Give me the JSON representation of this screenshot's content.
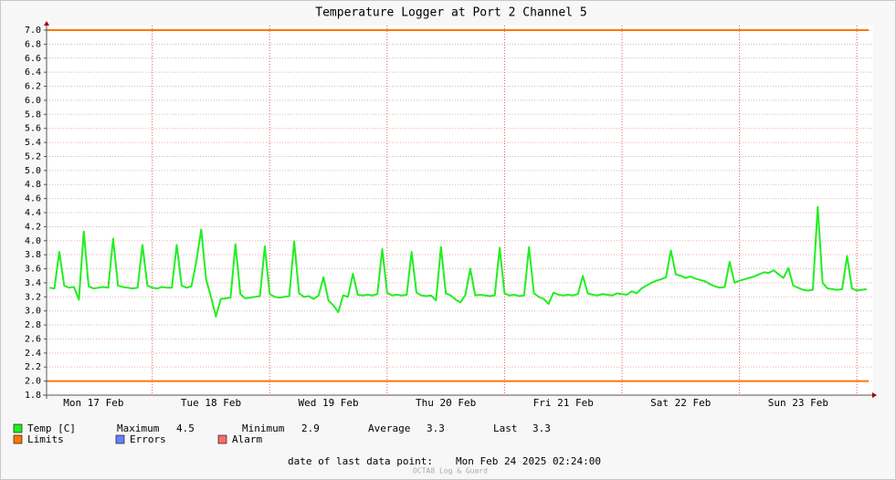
{
  "chart_data": {
    "type": "line",
    "title": "Temperature Logger at Port 2 Channel 5",
    "xlim": [
      2.4,
      170.4
    ],
    "xticks": [
      {
        "value": 12,
        "label": "Mon 17 Feb"
      },
      {
        "value": 36,
        "label": "Tue 18 Feb"
      },
      {
        "value": 60,
        "label": "Wed 19 Feb"
      },
      {
        "value": 84,
        "label": "Thu 20 Feb"
      },
      {
        "value": 108,
        "label": "Fri 21 Feb"
      },
      {
        "value": 132,
        "label": "Sat 22 Feb"
      },
      {
        "value": 156,
        "label": "Sun 23 Feb"
      }
    ],
    "xgrid": [
      24,
      48,
      72,
      96,
      120,
      144,
      168
    ],
    "ylim": [
      1.8,
      7.0
    ],
    "yticks": [
      1.8,
      {
        "value": 2,
        "label": "2.0"
      },
      2.2,
      2.4,
      2.6,
      2.8,
      {
        "value": 3,
        "label": "3.0"
      },
      3.2,
      3.4,
      3.6,
      3.8,
      {
        "value": 4,
        "label": "4.0"
      },
      4.2,
      4.4,
      4.6,
      4.8,
      {
        "value": 5,
        "label": "5.0"
      },
      5.2,
      5.4,
      5.6,
      5.8,
      {
        "value": 6,
        "label": "6.0"
      },
      6.2,
      6.4,
      6.6,
      6.8,
      {
        "value": 7,
        "label": "7.0"
      }
    ],
    "grid": true,
    "series": [
      {
        "name": "Temp [C]",
        "color": "#22ee22",
        "x": [
          3,
          4,
          5,
          6,
          7,
          8,
          9,
          10,
          11,
          12,
          13,
          14,
          15,
          16,
          17,
          18,
          19,
          20,
          21,
          22,
          23,
          24,
          25,
          26,
          27,
          28,
          29,
          30,
          31,
          32,
          33,
          34,
          35,
          36,
          37,
          38,
          39,
          40,
          41,
          42,
          43,
          44,
          45,
          46,
          47,
          48,
          49,
          50,
          51,
          52,
          53,
          54,
          55,
          56,
          57,
          58,
          59,
          60,
          61,
          62,
          63,
          64,
          65,
          66,
          67,
          68,
          69,
          70,
          71,
          72,
          73,
          74,
          75,
          76,
          77,
          78,
          79,
          80,
          81,
          82,
          83,
          84,
          85,
          86,
          87,
          88,
          89,
          90,
          91,
          92,
          93,
          94,
          95,
          96,
          97,
          98,
          99,
          100,
          101,
          102,
          103,
          104,
          105,
          106,
          107,
          108,
          109,
          110,
          111,
          112,
          113,
          114,
          115,
          116,
          117,
          118,
          119,
          120,
          121,
          122,
          123,
          124,
          125,
          126,
          127,
          128,
          129,
          130,
          131,
          132,
          133,
          134,
          135,
          136,
          137,
          138,
          139,
          140,
          141,
          142,
          143,
          144,
          145,
          146,
          147,
          148,
          149,
          150,
          151,
          152,
          153,
          154,
          155,
          156,
          157,
          158,
          159,
          160,
          161,
          162,
          163,
          164,
          165,
          166,
          167,
          168,
          169,
          170
        ],
        "values": [
          3.33,
          3.32,
          3.84,
          3.36,
          3.33,
          3.34,
          3.16,
          4.13,
          3.35,
          3.32,
          3.33,
          3.34,
          3.33,
          4.03,
          3.36,
          3.34,
          3.33,
          3.32,
          3.33,
          3.94,
          3.36,
          3.33,
          3.32,
          3.34,
          3.33,
          3.33,
          3.94,
          3.36,
          3.33,
          3.35,
          3.7,
          4.16,
          3.45,
          3.2,
          2.92,
          3.17,
          3.18,
          3.19,
          3.95,
          3.24,
          3.18,
          3.19,
          3.2,
          3.21,
          3.92,
          3.24,
          3.2,
          3.19,
          3.2,
          3.21,
          3.99,
          3.25,
          3.2,
          3.21,
          3.17,
          3.22,
          3.48,
          3.15,
          3.08,
          2.98,
          3.22,
          3.2,
          3.53,
          3.23,
          3.22,
          3.23,
          3.22,
          3.24,
          3.88,
          3.26,
          3.22,
          3.23,
          3.22,
          3.23,
          3.84,
          3.26,
          3.22,
          3.21,
          3.22,
          3.15,
          3.91,
          3.25,
          3.22,
          3.16,
          3.12,
          3.23,
          3.6,
          3.22,
          3.23,
          3.22,
          3.21,
          3.22,
          3.9,
          3.25,
          3.22,
          3.23,
          3.21,
          3.22,
          3.91,
          3.25,
          3.2,
          3.17,
          3.1,
          3.26,
          3.23,
          3.22,
          3.23,
          3.22,
          3.24,
          3.5,
          3.25,
          3.23,
          3.22,
          3.24,
          3.23,
          3.22,
          3.25,
          3.24,
          3.23,
          3.28,
          3.25,
          3.32,
          3.36,
          3.4,
          3.43,
          3.45,
          3.48,
          3.86,
          3.52,
          3.5,
          3.47,
          3.49,
          3.46,
          3.44,
          3.42,
          3.38,
          3.35,
          3.33,
          3.34,
          3.7,
          3.4,
          3.43,
          3.45,
          3.47,
          3.49,
          3.52,
          3.55,
          3.54,
          3.58,
          3.52,
          3.47,
          3.61,
          3.36,
          3.33,
          3.3,
          3.29,
          3.3,
          4.48,
          3.4,
          3.32,
          3.31,
          3.3,
          3.31,
          3.78,
          3.32,
          3.29,
          3.3,
          3.31
        ]
      }
    ],
    "limits": {
      "name": "Limits",
      "color": "#ff7700",
      "values": [
        2,
        7
      ]
    },
    "legend_extra": [
      {
        "name": "Errors",
        "color": "#6680ff"
      },
      {
        "name": "Alarm",
        "color": "#ff6b6b"
      }
    ],
    "stats": [
      {
        "label": "Maximum",
        "value": 4.5
      },
      {
        "label": "Minimum",
        "value": 2.9
      },
      {
        "label": "Average",
        "value": 3.3
      },
      {
        "label": "Last",
        "value": 3.3
      }
    ],
    "last_update_label": "date of last data point:",
    "last_update": "Mon Feb 24 2025 02:24:00",
    "credit": "OCTA8 Log & Guard"
  }
}
